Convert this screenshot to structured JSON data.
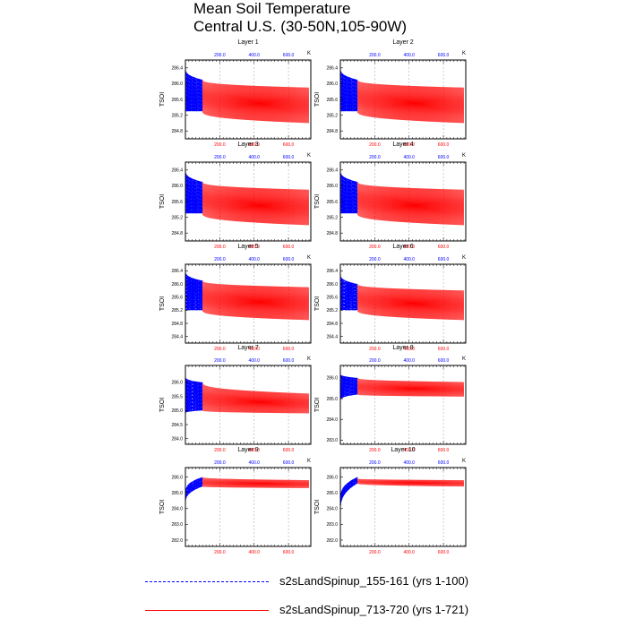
{
  "title": {
    "line1": "Mean Soil Temperature",
    "line2": "Central U.S. (30-50N,105-90W)"
  },
  "legend": [
    {
      "label": "s2sLandSpinup_155-161 (yrs 1-100)",
      "color": "#0000ff",
      "style": "dashed"
    },
    {
      "label": "s2sLandSpinup_713-720 (yrs 1-721)",
      "color": "#ff0000",
      "style": "solid"
    }
  ],
  "chart_data": [
    {
      "type": "line",
      "title": "Layer 1",
      "ylabel": "TSOI",
      "units": "K",
      "ylim": [
        284.6,
        286.6
      ],
      "yticks": [
        284.8,
        285.2,
        285.6,
        286.0,
        286.4
      ],
      "xlim": [
        0,
        730
      ],
      "xticks": [
        200,
        400,
        600
      ],
      "series": [
        {
          "name": "s2sLandSpinup_155-161 (yrs 1-100)",
          "color": "#0000ff",
          "x_range": [
            1,
            100
          ],
          "start_min": 285.3,
          "start_max": 286.4,
          "end_min": 285.3,
          "end_max": 286.1
        },
        {
          "name": "s2sLandSpinup_713-720 (yrs 1-721)",
          "color": "#ff0000",
          "x_range": [
            100,
            721
          ],
          "start_min": 285.3,
          "start_max": 286.1,
          "end_min": 285.0,
          "end_max": 285.9
        }
      ]
    },
    {
      "type": "line",
      "title": "Layer 2",
      "ylabel": "TSOI",
      "units": "K",
      "ylim": [
        284.6,
        286.6
      ],
      "yticks": [
        284.8,
        285.2,
        285.6,
        286.0,
        286.4
      ],
      "xlim": [
        0,
        730
      ],
      "xticks": [
        200,
        400,
        600
      ],
      "series": [
        {
          "name": "s2sLandSpinup_155-161 (yrs 1-100)",
          "color": "#0000ff",
          "x_range": [
            1,
            100
          ],
          "start_min": 285.3,
          "start_max": 286.4,
          "end_min": 285.3,
          "end_max": 286.1
        },
        {
          "name": "s2sLandSpinup_713-720 (yrs 1-721)",
          "color": "#ff0000",
          "x_range": [
            100,
            721
          ],
          "start_min": 285.3,
          "start_max": 286.1,
          "end_min": 285.0,
          "end_max": 285.9
        }
      ]
    },
    {
      "type": "line",
      "title": "Layer 3",
      "ylabel": "TSOI",
      "units": "K",
      "ylim": [
        284.6,
        286.6
      ],
      "yticks": [
        284.8,
        285.2,
        285.6,
        286.0,
        286.4
      ],
      "xlim": [
        0,
        730
      ],
      "xticks": [
        200,
        400,
        600
      ],
      "series": [
        {
          "name": "s2sLandSpinup_155-161 (yrs 1-100)",
          "color": "#0000ff",
          "x_range": [
            1,
            100
          ],
          "start_min": 285.3,
          "start_max": 286.4,
          "end_min": 285.3,
          "end_max": 286.1
        },
        {
          "name": "s2sLandSpinup_713-720 (yrs 1-721)",
          "color": "#ff0000",
          "x_range": [
            100,
            721
          ],
          "start_min": 285.3,
          "start_max": 286.1,
          "end_min": 285.0,
          "end_max": 285.9
        }
      ]
    },
    {
      "type": "line",
      "title": "Layer 4",
      "ylabel": "TSOI",
      "units": "K",
      "ylim": [
        284.6,
        286.6
      ],
      "yticks": [
        284.8,
        285.2,
        285.6,
        286.0,
        286.4
      ],
      "xlim": [
        0,
        730
      ],
      "xticks": [
        200,
        400,
        600
      ],
      "series": [
        {
          "name": "s2sLandSpinup_155-161 (yrs 1-100)",
          "color": "#0000ff",
          "x_range": [
            1,
            100
          ],
          "start_min": 285.3,
          "start_max": 286.4,
          "end_min": 285.3,
          "end_max": 286.1
        },
        {
          "name": "s2sLandSpinup_713-720 (yrs 1-721)",
          "color": "#ff0000",
          "x_range": [
            100,
            721
          ],
          "start_min": 285.3,
          "start_max": 286.1,
          "end_min": 285.0,
          "end_max": 285.9
        }
      ]
    },
    {
      "type": "line",
      "title": "Layer 5",
      "ylabel": "TSOI",
      "units": "K",
      "ylim": [
        284.2,
        286.6
      ],
      "yticks": [
        284.4,
        284.8,
        285.2,
        285.6,
        286.0,
        286.4
      ],
      "xlim": [
        0,
        730
      ],
      "xticks": [
        200,
        400,
        600
      ],
      "series": [
        {
          "name": "s2sLandSpinup_155-161 (yrs 1-100)",
          "color": "#0000ff",
          "x_range": [
            1,
            100
          ],
          "start_min": 285.2,
          "start_max": 286.4,
          "end_min": 285.2,
          "end_max": 286.1
        },
        {
          "name": "s2sLandSpinup_713-720 (yrs 1-721)",
          "color": "#ff0000",
          "x_range": [
            100,
            721
          ],
          "start_min": 285.2,
          "start_max": 286.1,
          "end_min": 284.9,
          "end_max": 285.9
        }
      ]
    },
    {
      "type": "line",
      "title": "Layer 6",
      "ylabel": "TSOI",
      "units": "K",
      "ylim": [
        284.2,
        286.6
      ],
      "yticks": [
        284.4,
        284.8,
        285.2,
        285.6,
        286.0,
        286.4
      ],
      "xlim": [
        0,
        730
      ],
      "xticks": [
        200,
        400,
        600
      ],
      "series": [
        {
          "name": "s2sLandSpinup_155-161 (yrs 1-100)",
          "color": "#0000ff",
          "x_range": [
            1,
            100
          ],
          "start_min": 285.2,
          "start_max": 286.3,
          "end_min": 285.2,
          "end_max": 286.0
        },
        {
          "name": "s2sLandSpinup_713-720 (yrs 1-721)",
          "color": "#ff0000",
          "x_range": [
            100,
            721
          ],
          "start_min": 285.2,
          "start_max": 286.0,
          "end_min": 284.9,
          "end_max": 285.8
        }
      ]
    },
    {
      "type": "line",
      "title": "Layer 7",
      "ylabel": "TSOI",
      "units": "K",
      "ylim": [
        283.8,
        286.6
      ],
      "yticks": [
        284.0,
        284.5,
        285.0,
        285.5,
        286.0
      ],
      "xlim": [
        0,
        730
      ],
      "xticks": [
        200,
        400,
        600
      ],
      "series": [
        {
          "name": "s2sLandSpinup_155-161 (yrs 1-100)",
          "color": "#0000ff",
          "x_range": [
            1,
            100
          ],
          "start_min": 284.9,
          "start_max": 286.2,
          "end_min": 285.0,
          "end_max": 286.0
        },
        {
          "name": "s2sLandSpinup_713-720 (yrs 1-721)",
          "color": "#ff0000",
          "x_range": [
            100,
            721
          ],
          "start_min": 285.0,
          "start_max": 286.0,
          "end_min": 284.9,
          "end_max": 285.6
        }
      ]
    },
    {
      "type": "line",
      "title": "Layer 8",
      "ylabel": "TSOI",
      "units": "K",
      "ylim": [
        282.8,
        286.6
      ],
      "yticks": [
        283.0,
        284.0,
        285.0,
        286.0
      ],
      "xlim": [
        0,
        730
      ],
      "xticks": [
        200,
        400,
        600
      ],
      "series": [
        {
          "name": "s2sLandSpinup_155-161 (yrs 1-100)",
          "color": "#0000ff",
          "x_range": [
            1,
            100
          ],
          "start_min": 284.9,
          "start_max": 286.2,
          "end_min": 285.2,
          "end_max": 286.0
        },
        {
          "name": "s2sLandSpinup_713-720 (yrs 1-721)",
          "color": "#ff0000",
          "x_range": [
            100,
            721
          ],
          "start_min": 285.2,
          "start_max": 286.0,
          "end_min": 285.1,
          "end_max": 285.8
        }
      ]
    },
    {
      "type": "line",
      "title": "Layer 9",
      "ylabel": "TSOI",
      "units": "K",
      "ylim": [
        281.6,
        286.6
      ],
      "yticks": [
        282.0,
        283.0,
        284.0,
        285.0,
        286.0
      ],
      "xlim": [
        0,
        730
      ],
      "xticks": [
        200,
        400,
        600
      ],
      "series": [
        {
          "name": "s2sLandSpinup_155-161 (yrs 1-100)",
          "color": "#0000ff",
          "x_range": [
            1,
            100
          ],
          "start_min": 284.3,
          "start_max": 285.0,
          "end_min": 285.4,
          "end_max": 286.0
        },
        {
          "name": "s2sLandSpinup_713-720 (yrs 1-721)",
          "color": "#ff0000",
          "x_range": [
            100,
            721
          ],
          "start_min": 285.4,
          "start_max": 286.0,
          "end_min": 285.3,
          "end_max": 285.8
        }
      ]
    },
    {
      "type": "line",
      "title": "Layer 10",
      "ylabel": "TSOI",
      "units": "K",
      "ylim": [
        281.6,
        286.6
      ],
      "yticks": [
        282.0,
        283.0,
        284.0,
        285.0,
        286.0
      ],
      "xlim": [
        0,
        730
      ],
      "xticks": [
        200,
        400,
        600
      ],
      "series": [
        {
          "name": "s2sLandSpinup_155-161 (yrs 1-100)",
          "color": "#0000ff",
          "x_range": [
            1,
            100
          ],
          "start_min": 283.8,
          "start_max": 284.6,
          "end_min": 285.6,
          "end_max": 286.0
        },
        {
          "name": "s2sLandSpinup_713-720 (yrs 1-721)",
          "color": "#ff0000",
          "x_range": [
            100,
            721
          ],
          "start_min": 285.6,
          "start_max": 285.9,
          "end_min": 285.4,
          "end_max": 285.8
        }
      ]
    }
  ]
}
